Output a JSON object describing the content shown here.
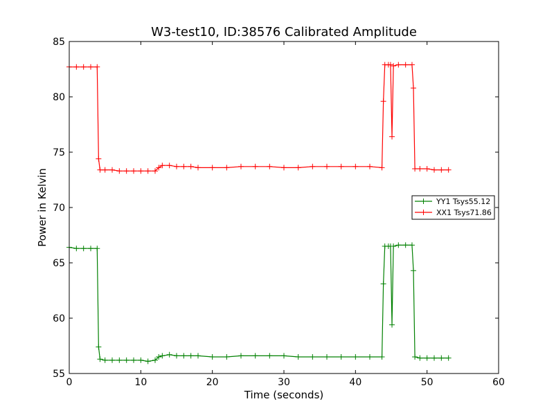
{
  "chart_data": {
    "type": "line",
    "title": "W3-test10, ID:38576 Calibrated Amplitude",
    "xlabel": "Time (seconds)",
    "ylabel": "Power in Kelvin",
    "xlim": [
      0,
      60
    ],
    "ylim": [
      55,
      85
    ],
    "xticks": [
      0,
      10,
      20,
      30,
      40,
      50,
      60
    ],
    "yticks": [
      55,
      60,
      65,
      70,
      75,
      80,
      85
    ],
    "grid": false,
    "legend_position": "center-right",
    "marker": "+",
    "series": [
      {
        "name": "YY1 Tsys55.12",
        "color": "#008000",
        "points": [
          [
            0,
            66.4
          ],
          [
            1,
            66.3
          ],
          [
            2,
            66.3
          ],
          [
            3,
            66.3
          ],
          [
            3.9,
            66.3
          ],
          [
            4.1,
            57.4
          ],
          [
            4.3,
            56.3
          ],
          [
            5,
            56.2
          ],
          [
            6,
            56.2
          ],
          [
            7,
            56.2
          ],
          [
            8,
            56.2
          ],
          [
            9,
            56.2
          ],
          [
            10,
            56.2
          ],
          [
            11,
            56.1
          ],
          [
            12,
            56.2
          ],
          [
            12.5,
            56.5
          ],
          [
            13,
            56.6
          ],
          [
            14,
            56.7
          ],
          [
            15,
            56.6
          ],
          [
            16,
            56.6
          ],
          [
            17,
            56.6
          ],
          [
            18,
            56.6
          ],
          [
            20,
            56.5
          ],
          [
            22,
            56.5
          ],
          [
            24,
            56.6
          ],
          [
            26,
            56.6
          ],
          [
            28,
            56.6
          ],
          [
            30,
            56.6
          ],
          [
            32,
            56.5
          ],
          [
            34,
            56.5
          ],
          [
            36,
            56.5
          ],
          [
            38,
            56.5
          ],
          [
            40,
            56.5
          ],
          [
            42,
            56.5
          ],
          [
            43.7,
            56.5
          ],
          [
            43.9,
            63.1
          ],
          [
            44.1,
            66.5
          ],
          [
            44.6,
            66.5
          ],
          [
            44.9,
            66.5
          ],
          [
            45.1,
            59.4
          ],
          [
            45.3,
            66.5
          ],
          [
            46,
            66.6
          ],
          [
            47,
            66.6
          ],
          [
            47.9,
            66.6
          ],
          [
            48.1,
            64.3
          ],
          [
            48.3,
            56.5
          ],
          [
            49,
            56.4
          ],
          [
            50,
            56.4
          ],
          [
            51,
            56.4
          ],
          [
            52,
            56.4
          ],
          [
            53,
            56.4
          ]
        ]
      },
      {
        "name": "XX1 Tsys71.86",
        "color": "#ff0000",
        "points": [
          [
            0,
            82.7
          ],
          [
            1,
            82.7
          ],
          [
            2,
            82.7
          ],
          [
            3,
            82.7
          ],
          [
            3.9,
            82.7
          ],
          [
            4.1,
            74.4
          ],
          [
            4.3,
            73.4
          ],
          [
            5,
            73.4
          ],
          [
            6,
            73.4
          ],
          [
            7,
            73.3
          ],
          [
            8,
            73.3
          ],
          [
            9,
            73.3
          ],
          [
            10,
            73.3
          ],
          [
            11,
            73.3
          ],
          [
            12,
            73.3
          ],
          [
            12.5,
            73.6
          ],
          [
            13,
            73.8
          ],
          [
            14,
            73.8
          ],
          [
            15,
            73.7
          ],
          [
            16,
            73.7
          ],
          [
            17,
            73.7
          ],
          [
            18,
            73.6
          ],
          [
            20,
            73.6
          ],
          [
            22,
            73.6
          ],
          [
            24,
            73.7
          ],
          [
            26,
            73.7
          ],
          [
            28,
            73.7
          ],
          [
            30,
            73.6
          ],
          [
            32,
            73.6
          ],
          [
            34,
            73.7
          ],
          [
            36,
            73.7
          ],
          [
            38,
            73.7
          ],
          [
            40,
            73.7
          ],
          [
            42,
            73.7
          ],
          [
            43.7,
            73.6
          ],
          [
            43.9,
            79.6
          ],
          [
            44.1,
            82.9
          ],
          [
            44.6,
            82.9
          ],
          [
            44.9,
            82.9
          ],
          [
            45.1,
            76.4
          ],
          [
            45.3,
            82.8
          ],
          [
            46,
            82.9
          ],
          [
            47,
            82.9
          ],
          [
            47.9,
            82.9
          ],
          [
            48.1,
            80.8
          ],
          [
            48.3,
            73.5
          ],
          [
            49,
            73.5
          ],
          [
            50,
            73.5
          ],
          [
            51,
            73.4
          ],
          [
            52,
            73.4
          ],
          [
            53,
            73.4
          ]
        ]
      }
    ]
  }
}
